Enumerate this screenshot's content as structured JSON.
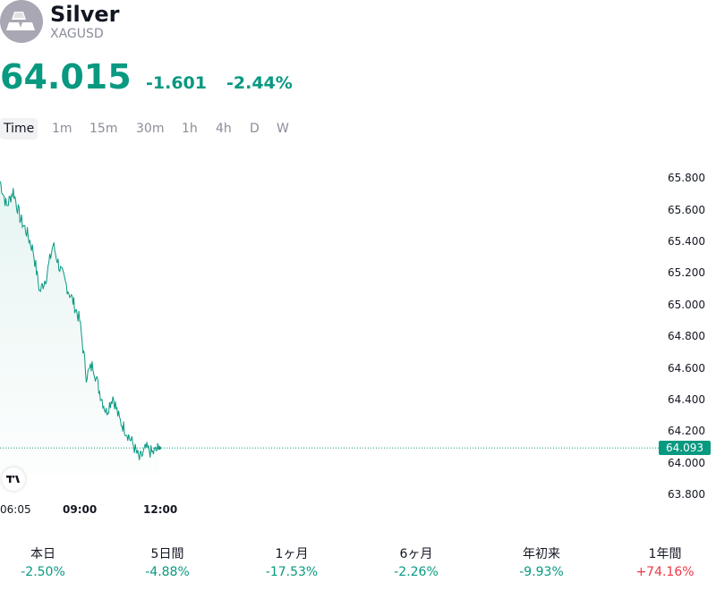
{
  "header": {
    "name": "Silver",
    "symbol": "XAGUSD",
    "avatar_icon": "silver-bars-icon"
  },
  "quote": {
    "price": "64.015",
    "change": "-1.601",
    "change_pct": "-2.44%",
    "color": "#089981"
  },
  "tabs": [
    "Time",
    "1m",
    "15m",
    "30m",
    "1h",
    "4h",
    "D",
    "W"
  ],
  "active_tab": "Time",
  "chart": {
    "y_ticks": [
      "65.800",
      "65.600",
      "65.400",
      "65.200",
      "65.000",
      "64.800",
      "64.600",
      "64.400",
      "64.200",
      "64.000",
      "63.800"
    ],
    "x_ticks": [
      "06:05",
      "09:00",
      "12:00"
    ],
    "last_price_label": "64.093",
    "logo_icon": "tradingview-logo-icon"
  },
  "chart_data": {
    "type": "area",
    "series": [
      {
        "x": [
          "06:05",
          "06:20",
          "06:35",
          "06:50",
          "07:05",
          "07:20",
          "07:35",
          "07:50",
          "08:05",
          "08:20",
          "08:35",
          "08:50",
          "09:05",
          "09:20",
          "09:35",
          "09:50",
          "10:05",
          "10:20",
          "10:35",
          "10:50",
          "11:05",
          "11:20",
          "11:35",
          "11:50",
          "12:05"
        ],
        "values": [
          65.78,
          65.62,
          65.72,
          65.55,
          65.46,
          65.34,
          65.08,
          65.18,
          65.38,
          65.23,
          65.12,
          65.02,
          64.9,
          64.55,
          64.62,
          64.45,
          64.32,
          64.42,
          64.27,
          64.2,
          64.12,
          64.02,
          64.09,
          64.06,
          64.093
        ]
      }
    ],
    "ylim": [
      63.8,
      65.85
    ],
    "last_price": 64.093,
    "line_color": "#089981"
  },
  "performance": [
    {
      "label": "本日",
      "value": "-2.50%",
      "color": "#089981"
    },
    {
      "label": "5日間",
      "value": "-4.88%",
      "color": "#089981"
    },
    {
      "label": "1ヶ月",
      "value": "-17.53%",
      "color": "#089981"
    },
    {
      "label": "6ヶ月",
      "value": "-2.26%",
      "color": "#089981"
    },
    {
      "label": "年初来",
      "value": "-9.93%",
      "color": "#089981"
    },
    {
      "label": "1年間",
      "value": "+74.16%",
      "color": "#f23645"
    }
  ]
}
